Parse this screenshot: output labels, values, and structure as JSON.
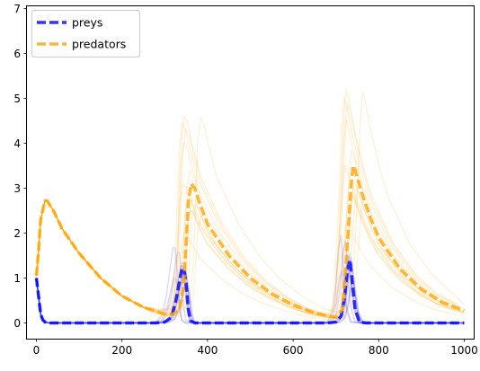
{
  "chart_data": {
    "type": "line",
    "title": "",
    "xlabel": "",
    "ylabel": "",
    "xlim": [
      -22,
      1022
    ],
    "ylim": [
      -0.35,
      7.05
    ],
    "xticks": [
      0,
      200,
      400,
      600,
      800,
      1000
    ],
    "yticks": [
      0,
      1,
      2,
      3,
      4,
      5,
      6,
      7
    ],
    "grid": false,
    "legend": {
      "placement": "top-left",
      "entries": [
        "preys",
        "predators"
      ]
    },
    "colors": {
      "preys": "#0000ff",
      "predators": "#ffa500"
    },
    "series": [
      {
        "name": "preys",
        "color": "#0000ff",
        "style": "dashed",
        "x": [
          0,
          5,
          10,
          15,
          20,
          30,
          50,
          100,
          200,
          280,
          300,
          315,
          325,
          333,
          340,
          345,
          350,
          355,
          360,
          370,
          400,
          500,
          600,
          650,
          680,
          700,
          712,
          720,
          727,
          733,
          738,
          745,
          755,
          770,
          800,
          900,
          1000
        ],
        "y": [
          1.0,
          0.6,
          0.2,
          0.07,
          0.02,
          0.0,
          0.0,
          0.0,
          0.0,
          0.0,
          0.02,
          0.12,
          0.45,
          0.85,
          1.2,
          1.2,
          0.85,
          0.3,
          0.05,
          0.0,
          0.0,
          0.0,
          0.0,
          0.0,
          0.0,
          0.02,
          0.15,
          0.55,
          1.2,
          1.4,
          0.9,
          0.3,
          0.02,
          0.0,
          0.0,
          0.0,
          0.0
        ]
      },
      {
        "name": "predators",
        "color": "#ffa500",
        "style": "dashed",
        "x": [
          0,
          5,
          10,
          20,
          25,
          40,
          60,
          100,
          150,
          200,
          250,
          300,
          320,
          335,
          345,
          350,
          355,
          362,
          370,
          380,
          400,
          450,
          500,
          550,
          600,
          650,
          700,
          715,
          725,
          735,
          740,
          745,
          760,
          780,
          800,
          850,
          900,
          950,
          1000
        ],
        "y": [
          1.05,
          1.6,
          2.3,
          2.72,
          2.72,
          2.5,
          2.1,
          1.55,
          1.0,
          0.6,
          0.35,
          0.2,
          0.2,
          0.3,
          0.9,
          1.8,
          2.7,
          3.1,
          3.0,
          2.7,
          2.2,
          1.5,
          1.0,
          0.65,
          0.4,
          0.22,
          0.12,
          0.3,
          1.5,
          3.0,
          3.5,
          3.4,
          2.9,
          2.35,
          1.9,
          1.2,
          0.75,
          0.45,
          0.28
        ]
      }
    ]
  }
}
